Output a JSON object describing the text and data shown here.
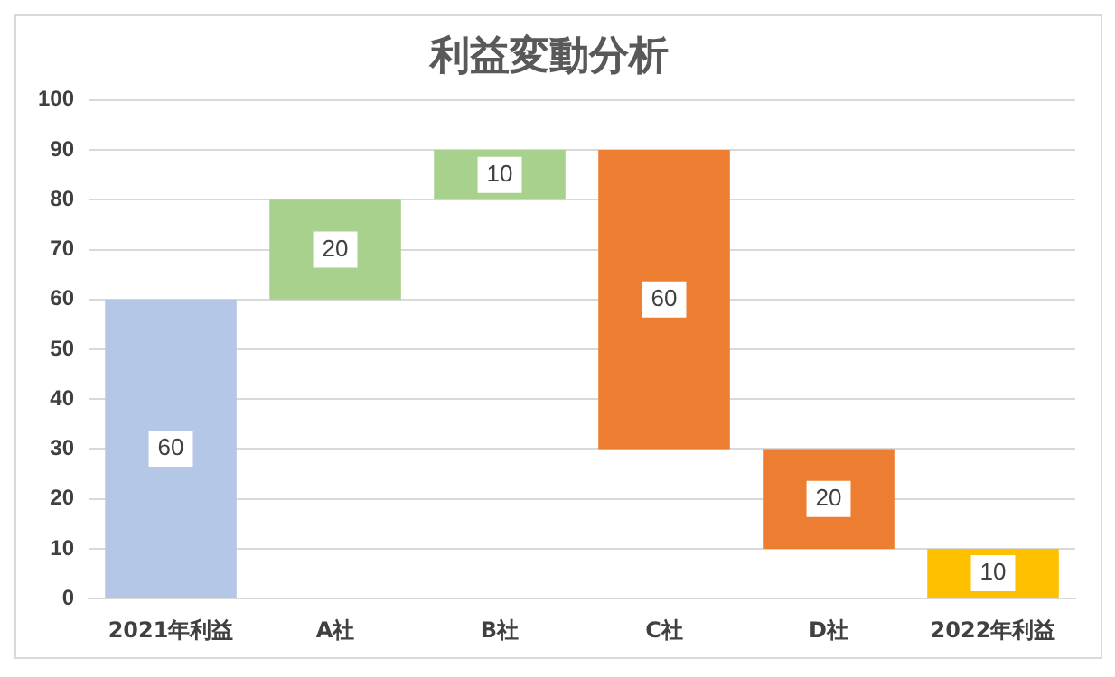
{
  "chart_data": {
    "type": "bar",
    "title": "利益変動分析",
    "categories": [
      "2021年利益",
      "A社",
      "B社",
      "C社",
      "D社",
      "2022年利益"
    ],
    "values": [
      60,
      20,
      10,
      60,
      20,
      10
    ],
    "base": [
      0,
      60,
      80,
      30,
      10,
      0
    ],
    "colors": [
      "#b4c7e7",
      "#a9d18e",
      "#a9d18e",
      "#ed7d31",
      "#ed7d31",
      "#ffc000"
    ],
    "ylim": [
      0,
      100
    ],
    "yticks": [
      0,
      10,
      20,
      30,
      40,
      50,
      60,
      70,
      80,
      90,
      100
    ],
    "grid": "y",
    "data_labels": true
  }
}
